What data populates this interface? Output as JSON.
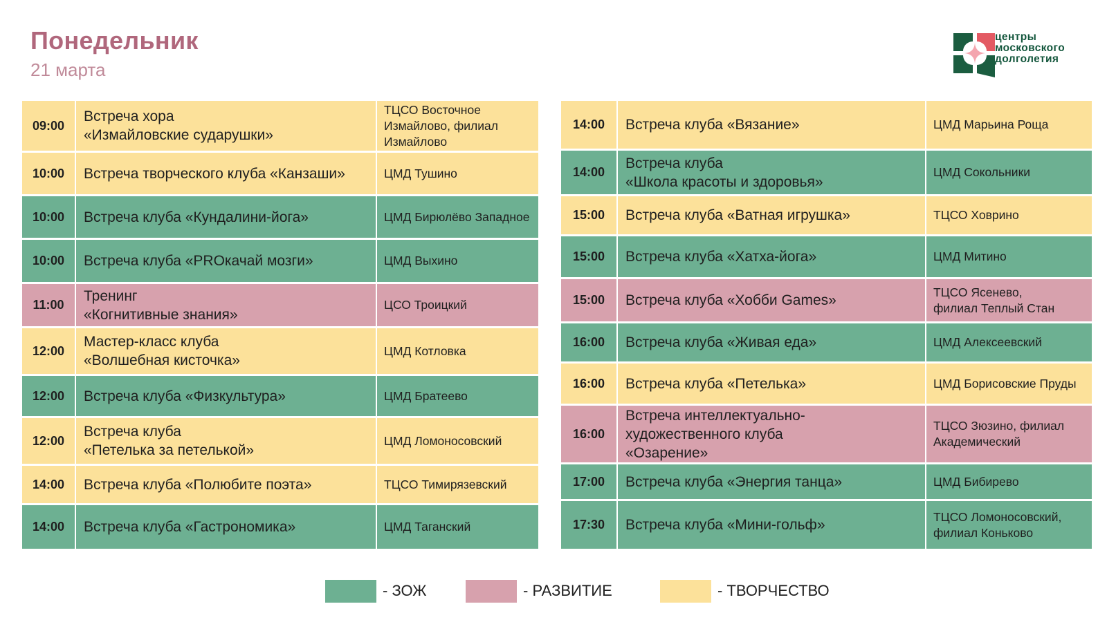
{
  "header": {
    "title": "Понедельник",
    "date": "21 марта"
  },
  "logo": {
    "lines": [
      "центры",
      "московского",
      "долголетия"
    ]
  },
  "colors": {
    "zozh": "#6db092",
    "razvitie": "#d7a1ad",
    "tvorchestvo": "#fce19a",
    "title": "#b0677c"
  },
  "schedule": {
    "left": [
      {
        "time": "09:00",
        "event": "Встреча хора\n«Измайловские сударушки»",
        "place": "ТЦСО Восточное Измайлово, филиал Измайлово",
        "category": "tvor"
      },
      {
        "time": "10:00",
        "event": "Встреча творческого клуба «Канзаши»",
        "place": "ЦМД Тушино",
        "category": "tvor"
      },
      {
        "time": "10:00",
        "event": "Встреча клуба «Кундалини-йога»",
        "place": "ЦМД Бирюлёво Западное",
        "category": "zozh"
      },
      {
        "time": "10:00",
        "event": "Встреча клуба «PROкачай мозги»",
        "place": "ЦМД Выхино",
        "category": "zozh"
      },
      {
        "time": "11:00",
        "event": "Тренинг\n«Когнитивные знания»",
        "place": "ЦСО Троицкий",
        "category": "razv"
      },
      {
        "time": "12:00",
        "event": "Мастер-класс клуба\n«Волшебная кисточка»",
        "place": "ЦМД Котловка",
        "category": "tvor"
      },
      {
        "time": "12:00",
        "event": "Встреча клуба «Физкультура»",
        "place": "ЦМД Братеево",
        "category": "zozh"
      },
      {
        "time": "12:00",
        "event": "Встреча клуба\n«Петелька за петелькой»",
        "place": "ЦМД Ломоносовский",
        "category": "tvor"
      },
      {
        "time": "14:00",
        "event": "Встреча клуба «Полюбите поэта»",
        "place": "ТЦСО Тимирязевский",
        "category": "tvor"
      },
      {
        "time": "14:00",
        "event": "Встреча клуба «Гастрономика»",
        "place": "ЦМД Таганский",
        "category": "zozh"
      }
    ],
    "right": [
      {
        "time": "14:00",
        "event": "Встреча клуба «Вязание»",
        "place": "ЦМД Марьина Роща",
        "category": "tvor"
      },
      {
        "time": "14:00",
        "event": "Встреча клуба\n«Школа красоты и здоровья»",
        "place": "ЦМД Сокольники",
        "category": "zozh"
      },
      {
        "time": "15:00",
        "event": "Встреча клуба «Ватная игрушка»",
        "place": "ТЦСО Ховрино",
        "category": "tvor"
      },
      {
        "time": "15:00",
        "event": "Встреча клуба «Хатха-йога»",
        "place": "ЦМД Митино",
        "category": "zozh"
      },
      {
        "time": "15:00",
        "event": "Встреча клуба «Хобби Games»",
        "place": "ТЦСО Ясенево,\nфилиал Теплый Стан",
        "category": "razv"
      },
      {
        "time": "16:00",
        "event": "Встреча клуба «Живая еда»",
        "place": "ЦМД Алексеевский",
        "category": "zozh"
      },
      {
        "time": "16:00",
        "event": "Встреча клуба «Петелька»",
        "place": "ЦМД Борисовские Пруды",
        "category": "tvor"
      },
      {
        "time": "16:00",
        "event": "Встреча интеллектуально-\nхудожественного клуба\n«Озарение»",
        "place": "ТЦСО Зюзино, филиал Академический",
        "category": "razv"
      },
      {
        "time": "17:00",
        "event": "Встреча клуба «Энергия танца»",
        "place": "ЦМД Бибирево",
        "category": "zozh"
      },
      {
        "time": "17:30",
        "event": "Встреча клуба «Мини-гольф»",
        "place": "ТЦСО Ломоносовский,\nфилиал Коньково",
        "category": "zozh"
      }
    ]
  },
  "legend": [
    {
      "label": "- ЗОЖ",
      "category": "zozh"
    },
    {
      "label": "- РАЗВИТИЕ",
      "category": "razv"
    },
    {
      "label": "- ТВОРЧЕСТВО",
      "category": "tvor"
    }
  ]
}
